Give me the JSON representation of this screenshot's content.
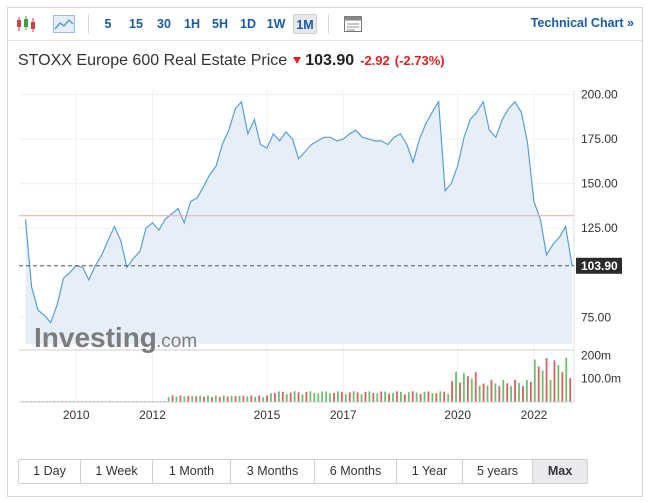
{
  "toolbar": {
    "icons": [
      {
        "name": "candlestick-icon"
      },
      {
        "name": "area-chart-icon"
      },
      {
        "name": "table-icon"
      }
    ],
    "timeframes": [
      "5",
      "15",
      "30",
      "1H",
      "5H",
      "1D",
      "1W",
      "1M"
    ],
    "active_timeframe": "1M",
    "technical_link": "Technical Chart »"
  },
  "header": {
    "name": "STOXX Europe 600 Real Estate Price",
    "price": "103.90",
    "change": "-2.92",
    "change_pct": "(-2.73%)",
    "direction_icon": "down-arrow-icon",
    "down_color": "#dd2222"
  },
  "watermark": {
    "brand": "Investing",
    "suffix": ".com"
  },
  "chart_data": [
    {
      "type": "area",
      "title": "",
      "x_ticks": [
        "2010",
        "2012",
        "2015",
        "2017",
        "2020",
        "2022"
      ],
      "y_ticks": [
        "200.00",
        "175.00",
        "150.00",
        "125.00",
        "75.00"
      ],
      "ylim": [
        60,
        202
      ],
      "last_price_label": "103.90",
      "last_price": 103.9,
      "reference_line": 132,
      "line_color": "#5a9fd4",
      "fill_color": "#e6eff8",
      "series": [
        {
          "x": [
            2008.67,
            2008.83,
            2009.0,
            2009.17,
            2009.33,
            2009.5,
            2009.67,
            2009.83,
            2010.0,
            2010.17,
            2010.33,
            2010.5,
            2010.67,
            2010.83,
            2011.0,
            2011.17,
            2011.33,
            2011.5,
            2011.67,
            2011.83,
            2012.0,
            2012.17,
            2012.33,
            2012.5,
            2012.67,
            2012.83,
            2013.0,
            2013.17,
            2013.33,
            2013.5,
            2013.67,
            2013.83,
            2014.0,
            2014.17,
            2014.33,
            2014.5,
            2014.67,
            2014.83,
            2015.0,
            2015.17,
            2015.33,
            2015.5,
            2015.67,
            2015.83,
            2016.0,
            2016.17,
            2016.33,
            2016.5,
            2016.67,
            2016.83,
            2017.0,
            2017.17,
            2017.33,
            2017.5,
            2017.67,
            2017.83,
            2018.0,
            2018.17,
            2018.33,
            2018.5,
            2018.67,
            2018.83,
            2019.0,
            2019.17,
            2019.33,
            2019.5,
            2019.67,
            2019.83,
            2020.0,
            2020.17,
            2020.33,
            2020.5,
            2020.67,
            2020.83,
            2021.0,
            2021.17,
            2021.33,
            2021.5,
            2021.67,
            2021.83,
            2022.0,
            2022.17,
            2022.33,
            2022.5,
            2022.67,
            2022.83,
            2023.0
          ],
          "y": [
            130,
            92,
            79,
            76,
            72,
            82,
            97,
            100,
            104,
            103,
            96,
            104,
            110,
            118,
            126,
            118,
            103,
            108,
            112,
            125,
            128,
            124,
            130,
            133,
            136,
            128,
            140,
            142,
            148,
            155,
            160,
            172,
            180,
            192,
            196,
            178,
            186,
            172,
            170,
            178,
            174,
            179,
            175,
            164,
            168,
            172,
            174,
            176,
            176,
            174,
            175,
            178,
            180,
            176,
            175,
            174,
            174,
            172,
            176,
            178,
            172,
            162,
            175,
            184,
            190,
            196,
            146,
            150,
            160,
            176,
            186,
            190,
            196,
            180,
            176,
            186,
            192,
            196,
            190,
            173,
            140,
            130,
            110,
            116,
            120,
            126,
            103.9
          ]
        }
      ]
    },
    {
      "type": "bar",
      "title": "",
      "y_ticks": [
        "200m",
        "100.0m"
      ],
      "ylim": [
        0,
        210
      ],
      "colors": {
        "up": "#6cbf6c",
        "down": "#d66060"
      }
    }
  ]
}
